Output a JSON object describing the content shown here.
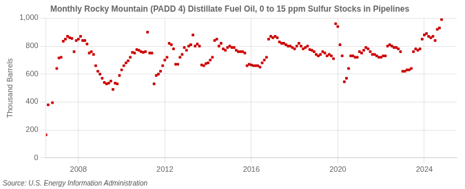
{
  "chart_data": {
    "type": "scatter",
    "title": "Monthly Rocky Mountain (PADD 4) Distillate Fuel Oil, 0 to 15 ppm Sulfur Stocks in Pipelines",
    "ylabel": "Thousand Barrels",
    "annotations": [
      "Source: U.S. Energy Information Administration"
    ],
    "color": "#cc0000",
    "marker": "square",
    "grid": true,
    "xlim": [
      2006.5,
      2025.5
    ],
    "xticks": [
      2008,
      2012,
      2016,
      2020,
      2024
    ],
    "ylim": [
      0,
      1000
    ],
    "yticks": [
      0,
      200,
      400,
      600,
      800,
      {
        "value": 1000,
        "label": "1,000"
      }
    ],
    "x": [
      2006.5,
      2006.6,
      2006.8,
      2007.0,
      2007.1,
      2007.2,
      2007.3,
      2007.4,
      2007.5,
      2007.6,
      2007.7,
      2007.8,
      2007.9,
      2008.0,
      2008.1,
      2008.2,
      2008.3,
      2008.4,
      2008.5,
      2008.6,
      2008.7,
      2008.8,
      2008.9,
      2009.0,
      2009.1,
      2009.2,
      2009.3,
      2009.4,
      2009.5,
      2009.6,
      2009.7,
      2009.8,
      2009.9,
      2010.0,
      2010.1,
      2010.2,
      2010.3,
      2010.4,
      2010.5,
      2010.6,
      2010.7,
      2010.8,
      2010.9,
      2011.0,
      2011.1,
      2011.2,
      2011.3,
      2011.4,
      2011.5,
      2011.6,
      2011.7,
      2011.8,
      2011.9,
      2012.0,
      2012.1,
      2012.2,
      2012.3,
      2012.4,
      2012.5,
      2012.6,
      2012.7,
      2012.8,
      2012.9,
      2013.0,
      2013.1,
      2013.2,
      2013.3,
      2013.4,
      2013.5,
      2013.6,
      2013.7,
      2013.8,
      2013.9,
      2014.0,
      2014.1,
      2014.2,
      2014.3,
      2014.4,
      2014.5,
      2014.6,
      2014.7,
      2014.8,
      2014.9,
      2015.0,
      2015.1,
      2015.2,
      2015.3,
      2015.4,
      2015.5,
      2015.6,
      2015.7,
      2015.8,
      2015.9,
      2016.0,
      2016.1,
      2016.2,
      2016.3,
      2016.4,
      2016.5,
      2016.6,
      2016.7,
      2016.8,
      2016.9,
      2017.0,
      2017.1,
      2017.2,
      2017.3,
      2017.4,
      2017.5,
      2017.6,
      2017.7,
      2017.8,
      2017.9,
      2018.0,
      2018.1,
      2018.2,
      2018.3,
      2018.4,
      2018.5,
      2018.6,
      2018.7,
      2018.8,
      2018.9,
      2019.0,
      2019.1,
      2019.2,
      2019.3,
      2019.4,
      2019.5,
      2019.6,
      2019.7,
      2019.8,
      2019.9,
      2020.0,
      2020.1,
      2020.2,
      2020.3,
      2020.4,
      2020.5,
      2020.6,
      2020.7,
      2020.8,
      2020.9,
      2021.0,
      2021.1,
      2021.2,
      2021.3,
      2021.4,
      2021.5,
      2021.6,
      2021.7,
      2021.8,
      2021.9,
      2022.0,
      2022.1,
      2022.2,
      2022.3,
      2022.4,
      2022.5,
      2022.6,
      2022.7,
      2022.8,
      2022.9,
      2023.0,
      2023.1,
      2023.2,
      2023.3,
      2023.4,
      2023.5,
      2023.6,
      2023.7,
      2023.8,
      2023.9,
      2024.0,
      2024.1,
      2024.2,
      2024.3,
      2024.4,
      2024.5,
      2024.6,
      2024.7,
      2024.8
    ],
    "values": [
      165,
      380,
      395,
      640,
      715,
      720,
      835,
      850,
      870,
      860,
      855,
      760,
      840,
      850,
      870,
      840,
      840,
      815,
      750,
      760,
      740,
      660,
      620,
      600,
      570,
      540,
      530,
      535,
      550,
      490,
      535,
      530,
      590,
      630,
      660,
      680,
      695,
      720,
      755,
      750,
      775,
      770,
      760,
      755,
      760,
      900,
      750,
      750,
      530,
      590,
      600,
      620,
      660,
      700,
      720,
      820,
      810,
      780,
      670,
      670,
      720,
      740,
      790,
      770,
      800,
      810,
      880,
      800,
      815,
      800,
      665,
      660,
      675,
      680,
      700,
      720,
      840,
      850,
      800,
      820,
      780,
      770,
      790,
      800,
      790,
      790,
      770,
      760,
      760,
      760,
      750,
      660,
      670,
      665,
      660,
      660,
      660,
      650,
      680,
      700,
      720,
      850,
      870,
      860,
      870,
      860,
      830,
      820,
      820,
      810,
      800,
      800,
      790,
      780,
      800,
      820,
      800,
      780,
      790,
      800,
      775,
      770,
      760,
      740,
      730,
      740,
      760,
      750,
      730,
      740,
      730,
      710,
      960,
      940,
      810,
      730,
      545,
      570,
      640,
      730,
      730,
      720,
      720,
      760,
      750,
      770,
      790,
      780,
      760,
      740,
      740,
      730,
      720,
      720,
      730,
      730,
      800,
      810,
      800,
      790,
      790,
      780,
      760,
      620,
      620,
      630,
      630,
      640,
      760,
      780,
      770,
      780,
      850,
      880,
      890,
      870,
      860,
      870,
      840,
      920,
      930,
      990
    ]
  }
}
